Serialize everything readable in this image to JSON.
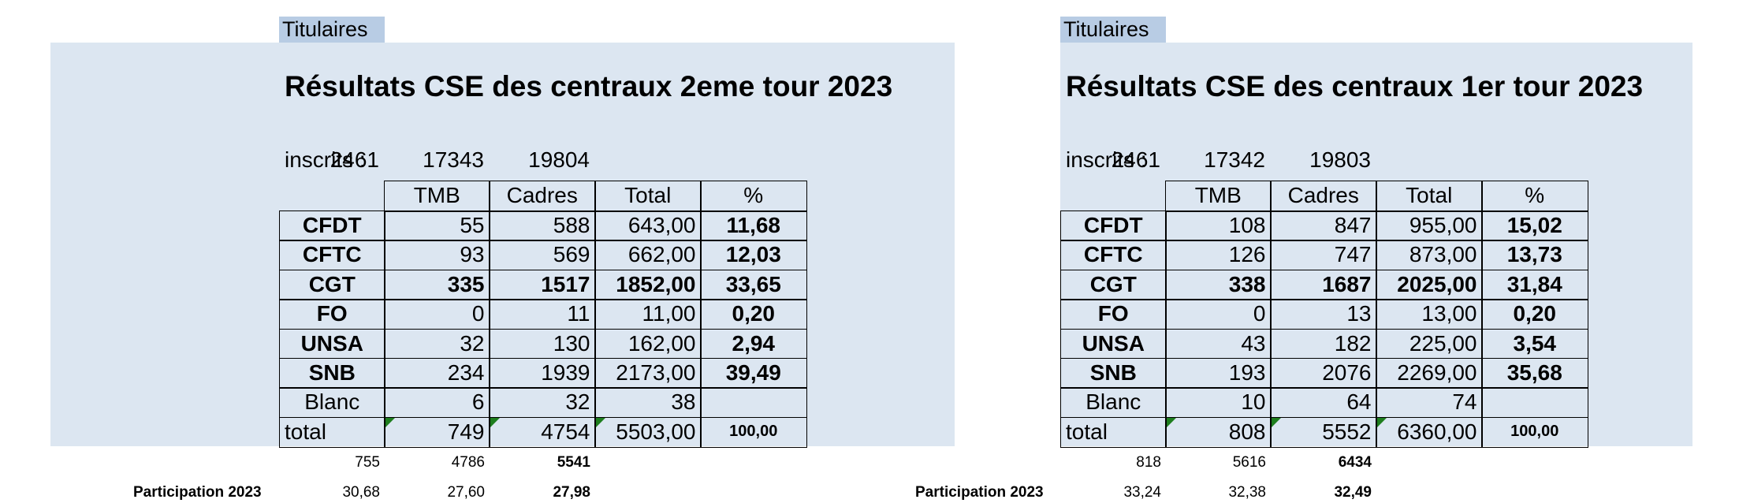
{
  "panels": [
    {
      "tag": "Titulaires",
      "title": "Résultats CSE des centraux 2eme tour 2023",
      "inscrits": {
        "label": "inscrits :",
        "values": [
          "2461",
          "17343",
          "19804"
        ]
      },
      "table": {
        "header": [
          "TMB",
          "Cadres",
          "Total",
          "%"
        ],
        "rows": [
          [
            "CFDT",
            "55",
            "588",
            "643,00",
            "11,68"
          ],
          [
            "CFTC",
            "93",
            "569",
            "662,00",
            "12,03"
          ],
          [
            "CGT",
            "335",
            "1517",
            "1852,00",
            "33,65"
          ],
          [
            "FO",
            "0",
            "11",
            "11,00",
            "0,20"
          ],
          [
            "UNSA",
            "32",
            "130",
            "162,00",
            "2,94"
          ],
          [
            "SNB",
            "234",
            "1939",
            "2173,00",
            "39,49"
          ],
          [
            "Blanc",
            "6",
            "32",
            "38"
          ],
          [
            "total",
            "749",
            "4754",
            "5503,00",
            "100,00"
          ]
        ]
      },
      "counts": [
        "755",
        "4786",
        "5541"
      ],
      "participation": {
        "label": "Participation 2023",
        "values": [
          "30,68",
          "27,60",
          "27,98"
        ]
      }
    },
    {
      "tag": "Titulaires",
      "title": "Résultats CSE des centraux 1er tour 2023",
      "inscrits": {
        "label": "inscrits :",
        "values": [
          "2461",
          "17342",
          "19803"
        ]
      },
      "table": {
        "header": [
          "TMB",
          "Cadres",
          "Total",
          "%"
        ],
        "rows": [
          [
            "CFDT",
            "108",
            "847",
            "955,00",
            "15,02"
          ],
          [
            "CFTC",
            "126",
            "747",
            "873,00",
            "13,73"
          ],
          [
            "CGT",
            "338",
            "1687",
            "2025,00",
            "31,84"
          ],
          [
            "FO",
            "0",
            "13",
            "13,00",
            "0,20"
          ],
          [
            "UNSA",
            "43",
            "182",
            "225,00",
            "3,54"
          ],
          [
            "SNB",
            "193",
            "2076",
            "2269,00",
            "35,68"
          ],
          [
            "Blanc",
            "10",
            "64",
            "74"
          ],
          [
            "total",
            "808",
            "5552",
            "6360,00",
            "100,00"
          ]
        ]
      },
      "counts": [
        "818",
        "5616",
        "6434"
      ],
      "participation": {
        "label": "Participation 2023",
        "values": [
          "33,24",
          "32,38",
          "32,49"
        ]
      }
    }
  ]
}
